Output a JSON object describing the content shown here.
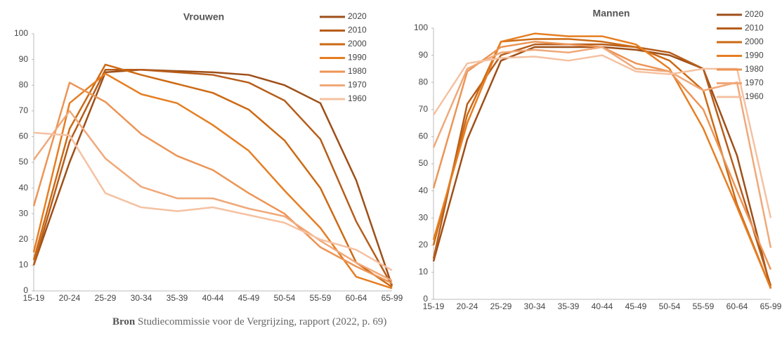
{
  "chart_data": [
    {
      "type": "line",
      "title": "Vrouwen",
      "categories": [
        "15-19",
        "20-24",
        "25-29",
        "30-34",
        "35-39",
        "40-44",
        "45-49",
        "50-54",
        "55-59",
        "60-64",
        "65-99"
      ],
      "ylim": [
        0,
        100
      ],
      "yticks": [
        0,
        10,
        20,
        30,
        40,
        50,
        60,
        70,
        80,
        90,
        100
      ],
      "legend": "upper right",
      "series": [
        {
          "name": "2020",
          "color": "#9e4f18",
          "values": [
            10,
            50,
            85,
            86,
            85.5,
            85,
            84,
            80,
            73,
            43,
            2
          ]
        },
        {
          "name": "2010",
          "color": "#b65d1b",
          "values": [
            10,
            58,
            86,
            86,
            85,
            84,
            81,
            74,
            59,
            27,
            2
          ]
        },
        {
          "name": "2000",
          "color": "#cc6a14",
          "values": [
            12,
            63,
            88,
            84,
            80.5,
            77,
            70.5,
            58.5,
            40,
            11,
            1.5
          ]
        },
        {
          "name": "1990",
          "color": "#e67e22",
          "values": [
            15,
            73,
            84.5,
            76.5,
            73,
            64.5,
            54.5,
            39,
            24.5,
            5.5,
            1
          ]
        },
        {
          "name": "1980",
          "color": "#ec9455",
          "values": [
            33,
            81,
            73.5,
            61,
            52.5,
            47,
            38,
            30,
            17,
            9.5,
            3
          ]
        },
        {
          "name": "1970",
          "color": "#f0a878",
          "values": [
            51,
            70,
            51.5,
            40.5,
            36,
            36,
            32,
            29,
            19.5,
            11,
            4
          ]
        },
        {
          "name": "1960",
          "color": "#f5c1a1",
          "values": [
            61.5,
            60.5,
            38,
            32.5,
            31,
            32.5,
            29.5,
            26.5,
            20,
            16,
            8
          ]
        }
      ]
    },
    {
      "type": "line",
      "title": "Mannen",
      "categories": [
        "15-19",
        "20-24",
        "25-29",
        "30-34",
        "35-39",
        "40-44",
        "45-49",
        "50-54",
        "55-59",
        "60-64",
        "65-99"
      ],
      "ylim": [
        0,
        100
      ],
      "yticks": [
        0,
        10,
        20,
        30,
        40,
        50,
        60,
        70,
        80,
        90,
        100
      ],
      "legend": "upper right",
      "series": [
        {
          "name": "2020",
          "color": "#9e4f18",
          "values": [
            14,
            59,
            88,
            93,
            93,
            93,
            92,
            90,
            85,
            53,
            4
          ]
        },
        {
          "name": "2010",
          "color": "#b65d1b",
          "values": [
            15,
            72,
            90,
            94,
            94,
            94,
            93,
            91,
            85,
            45,
            5
          ]
        },
        {
          "name": "2000",
          "color": "#cc6a14",
          "values": [
            20,
            68,
            95,
            96,
            96,
            95,
            93,
            88,
            77,
            35,
            4
          ]
        },
        {
          "name": "1990",
          "color": "#e67e22",
          "values": [
            22,
            65,
            95,
            98,
            97,
            97,
            94,
            85,
            63,
            34,
            4
          ]
        },
        {
          "name": "1980",
          "color": "#ec9455",
          "values": [
            41,
            84,
            93,
            95,
            94,
            93,
            87,
            84,
            70,
            40,
            11
          ]
        },
        {
          "name": "1970",
          "color": "#f0a878",
          "values": [
            56,
            85,
            91,
            92,
            91,
            93,
            85,
            84,
            77,
            80,
            19
          ]
        },
        {
          "name": "1960",
          "color": "#f5c1a1",
          "values": [
            68,
            87,
            89,
            89.5,
            88,
            90,
            84,
            83,
            85,
            85,
            30
          ]
        }
      ]
    }
  ],
  "source": {
    "label": "Bron",
    "text": "Studiecommissie voor de Vergrijzing, rapport (2022, p. 69)"
  }
}
